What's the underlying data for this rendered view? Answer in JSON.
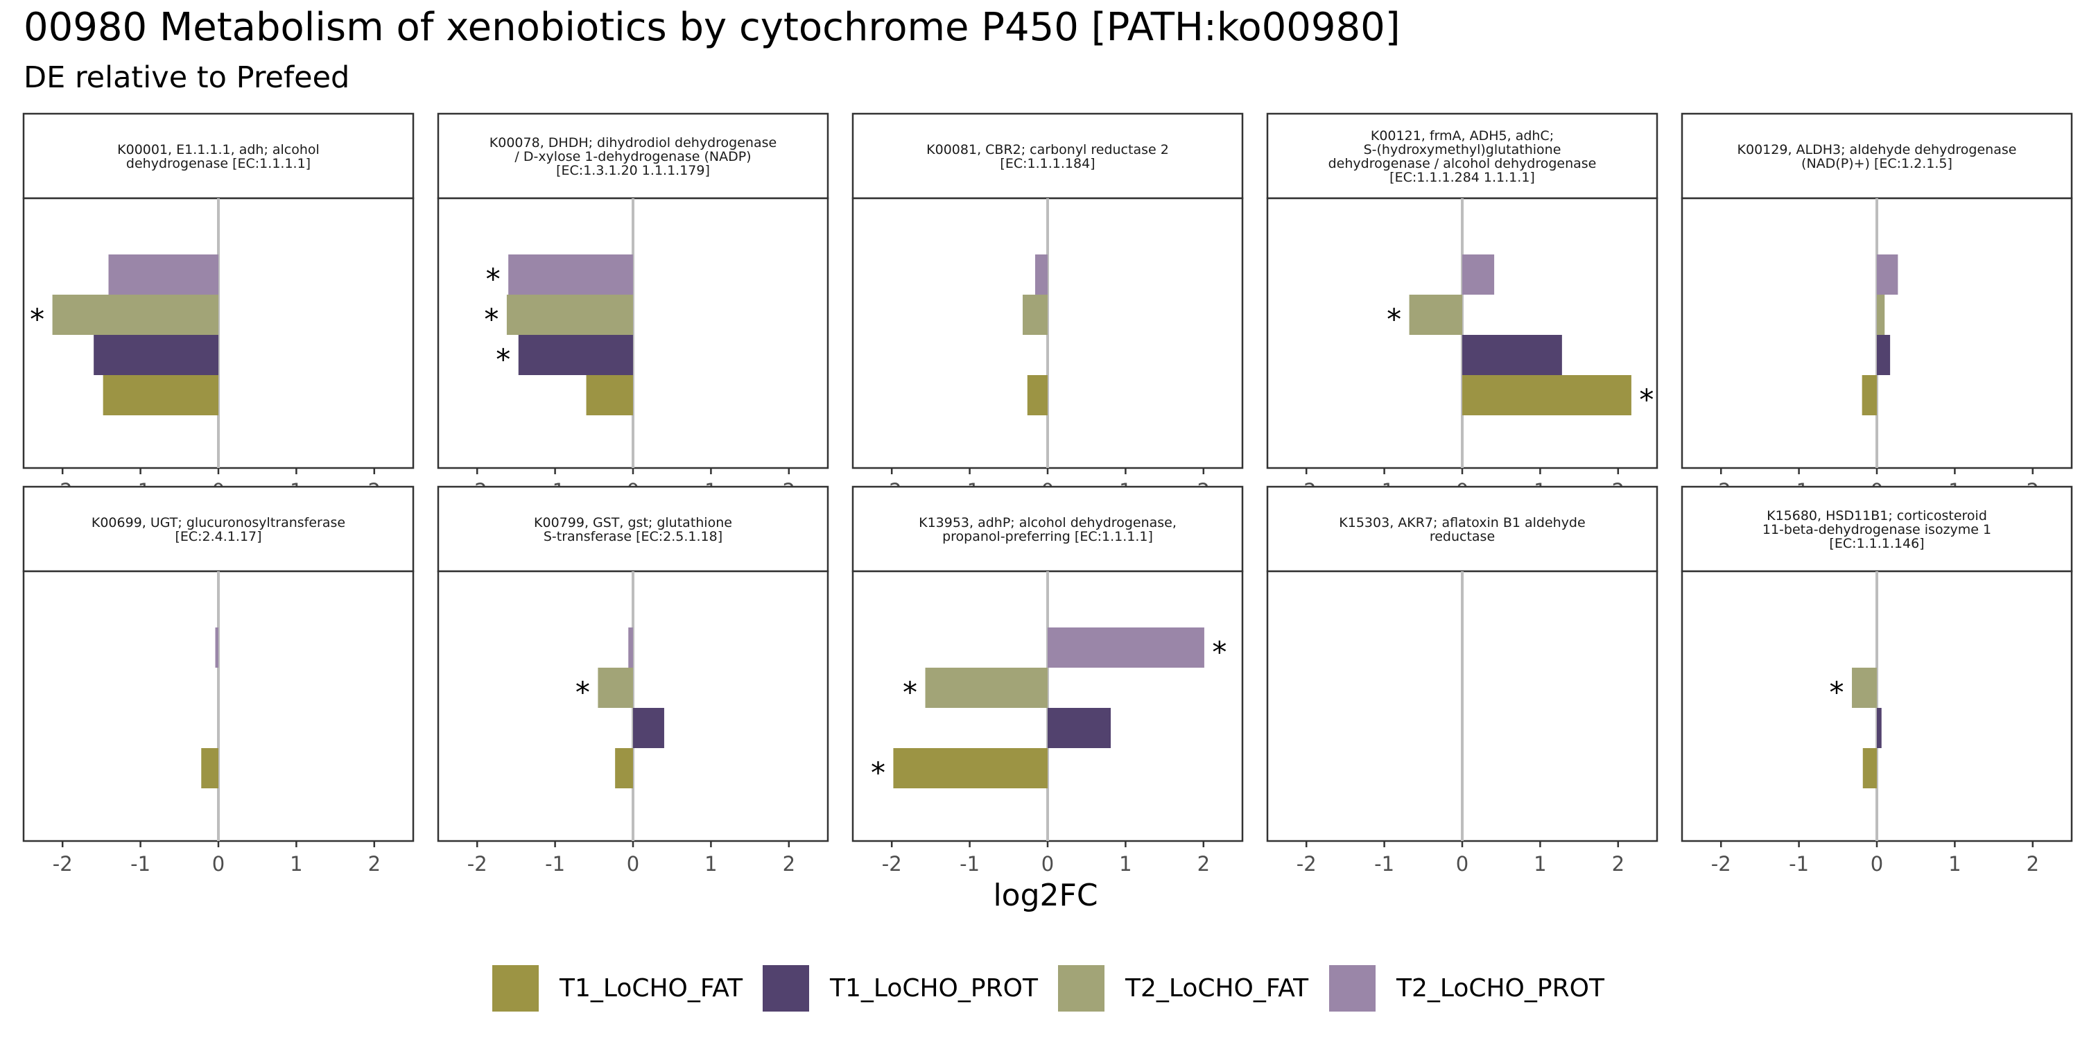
{
  "title": "00980 Metabolism of xenobiotics by cytochrome P450 [PATH:ko00980]",
  "subtitle": "DE relative to Prefeed",
  "chart_data": {
    "type": "bar",
    "orientation": "horizontal",
    "layout": "facet grid 2 rows x 5 columns",
    "xlabel": "log2FC",
    "xlim": [
      -2.5,
      2.5
    ],
    "x_ticks": [
      -2,
      -1,
      0,
      1,
      2
    ],
    "x_tick_labels": [
      "-2",
      "-1",
      "0",
      "1",
      "2"
    ],
    "zero_line": true,
    "grid": false,
    "legend_position": "bottom",
    "significance_marker": "*",
    "series": [
      {
        "name": "T1_LoCHO_FAT",
        "color": "#9c9444"
      },
      {
        "name": "T1_LoCHO_PROT",
        "color": "#52426e"
      },
      {
        "name": "T2_LoCHO_FAT",
        "color": "#a2a477"
      },
      {
        "name": "T2_LoCHO_PROT",
        "color": "#9a86a8"
      }
    ],
    "bar_order_top_to_bottom": [
      "T2_LoCHO_PROT",
      "T2_LoCHO_FAT",
      "T1_LoCHO_PROT",
      "T1_LoCHO_FAT"
    ],
    "panels": [
      {
        "label": [
          "K00001, E1.1.1.1, adh; alcohol",
          "dehydrogenase [EC:1.1.1.1]"
        ],
        "values": {
          "T1_LoCHO_FAT": -1.48,
          "T1_LoCHO_PROT": -1.6,
          "T2_LoCHO_FAT": -2.13,
          "T2_LoCHO_PROT": -1.41
        },
        "significant": [
          "T2_LoCHO_FAT"
        ]
      },
      {
        "label": [
          "K00078, DHDH; dihydrodiol dehydrogenase",
          "/ D-xylose 1-dehydrogenase (NADP)",
          "[EC:1.3.1.20 1.1.1.179]"
        ],
        "values": {
          "T1_LoCHO_FAT": -0.6,
          "T1_LoCHO_PROT": -1.47,
          "T2_LoCHO_FAT": -1.62,
          "T2_LoCHO_PROT": -1.6
        },
        "significant": [
          "T1_LoCHO_PROT",
          "T2_LoCHO_FAT",
          "T2_LoCHO_PROT"
        ]
      },
      {
        "label": [
          "K00081, CBR2; carbonyl reductase 2",
          "[EC:1.1.1.184]"
        ],
        "values": {
          "T1_LoCHO_FAT": -0.26,
          "T1_LoCHO_PROT": null,
          "T2_LoCHO_FAT": -0.32,
          "T2_LoCHO_PROT": -0.16
        },
        "significant": []
      },
      {
        "label": [
          "K00121, frmA, ADH5, adhC;",
          "S-(hydroxymethyl)glutathione",
          "dehydrogenase / alcohol dehydrogenase",
          "[EC:1.1.1.284 1.1.1.1]"
        ],
        "values": {
          "T1_LoCHO_FAT": 2.17,
          "T1_LoCHO_PROT": 1.28,
          "T2_LoCHO_FAT": -0.68,
          "T2_LoCHO_PROT": 0.41
        },
        "significant": [
          "T1_LoCHO_FAT",
          "T2_LoCHO_FAT"
        ]
      },
      {
        "label": [
          "K00129, ALDH3; aldehyde dehydrogenase",
          "(NAD(P)+) [EC:1.2.1.5]"
        ],
        "values": {
          "T1_LoCHO_FAT": -0.19,
          "T1_LoCHO_PROT": 0.17,
          "T2_LoCHO_FAT": 0.1,
          "T2_LoCHO_PROT": 0.27
        },
        "significant": []
      },
      {
        "label": [
          "K00699, UGT; glucuronosyltransferase",
          "[EC:2.4.1.17]"
        ],
        "values": {
          "T1_LoCHO_FAT": -0.22,
          "T1_LoCHO_PROT": null,
          "T2_LoCHO_FAT": null,
          "T2_LoCHO_PROT": -0.04
        },
        "significant": []
      },
      {
        "label": [
          "K00799, GST, gst; glutathione",
          "S-transferase [EC:2.5.1.18]"
        ],
        "values": {
          "T1_LoCHO_FAT": -0.23,
          "T1_LoCHO_PROT": 0.4,
          "T2_LoCHO_FAT": -0.45,
          "T2_LoCHO_PROT": -0.06
        },
        "significant": [
          "T2_LoCHO_FAT"
        ]
      },
      {
        "label": [
          "K13953, adhP; alcohol dehydrogenase,",
          "propanol-preferring [EC:1.1.1.1]"
        ],
        "values": {
          "T1_LoCHO_FAT": -1.98,
          "T1_LoCHO_PROT": 0.81,
          "T2_LoCHO_FAT": -1.57,
          "T2_LoCHO_PROT": 2.01
        },
        "significant": [
          "T1_LoCHO_FAT",
          "T2_LoCHO_FAT",
          "T2_LoCHO_PROT"
        ]
      },
      {
        "label": [
          "K15303, AKR7; aflatoxin B1 aldehyde",
          "reductase"
        ],
        "values": {
          "T1_LoCHO_FAT": null,
          "T1_LoCHO_PROT": null,
          "T2_LoCHO_FAT": null,
          "T2_LoCHO_PROT": null
        },
        "significant": []
      },
      {
        "label": [
          "K15680, HSD11B1; corticosteroid",
          "11-beta-dehydrogenase isozyme 1",
          "[EC:1.1.1.146]"
        ],
        "values": {
          "T1_LoCHO_FAT": -0.18,
          "T1_LoCHO_PROT": 0.06,
          "T2_LoCHO_FAT": -0.32,
          "T2_LoCHO_PROT": null
        },
        "significant": [
          "T2_LoCHO_FAT"
        ]
      }
    ]
  }
}
